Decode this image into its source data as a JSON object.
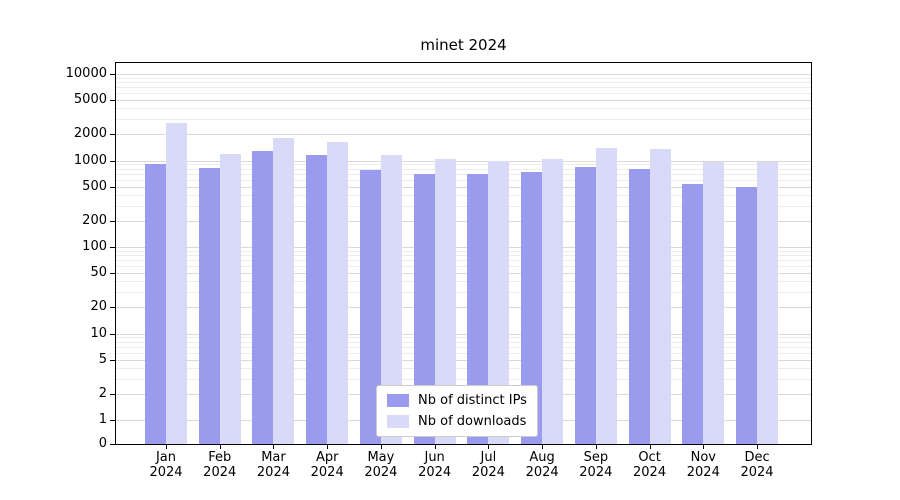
{
  "figure": {
    "background": "#ffffff"
  },
  "chart_data": {
    "type": "bar",
    "title": "minet 2024",
    "yscale": "symlog",
    "grid": true,
    "legend_position": "lower center",
    "xlabel": "",
    "ylabel": "",
    "ylim": [
      0,
      13000
    ],
    "categories": [
      "Jan 2024",
      "Feb 2024",
      "Mar 2024",
      "Apr 2024",
      "May 2024",
      "Jun 2024",
      "Jul 2024",
      "Aug 2024",
      "Sep 2024",
      "Oct 2024",
      "Nov 2024",
      "Dec 2024"
    ],
    "y_ticks": [
      10000,
      5000,
      2000,
      1000,
      500,
      200,
      100,
      50,
      20,
      10,
      5,
      2,
      1,
      0
    ],
    "y_minor_ticks_per_decade": [
      3,
      4,
      6,
      7,
      8,
      9
    ],
    "series": [
      {
        "name": "Nb of distinct IPs",
        "color": "#9b9bee",
        "values": [
          900,
          820,
          1300,
          1150,
          780,
          700,
          700,
          740,
          840,
          800,
          530,
          500
        ]
      },
      {
        "name": "Nb of downloads",
        "color": "#d9d9f8",
        "values": [
          2700,
          1200,
          1800,
          1650,
          1150,
          1030,
          1000,
          1050,
          1400,
          1350,
          950,
          960
        ]
      }
    ],
    "grid_major_color": "#d9d9d9",
    "grid_minor_color": "#ececec",
    "axis_color": "#000000"
  }
}
